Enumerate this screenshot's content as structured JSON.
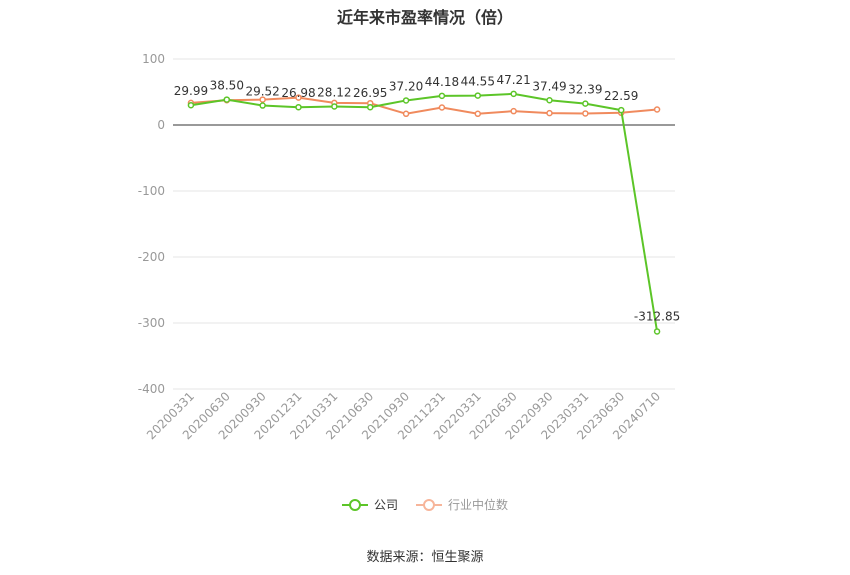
{
  "chart_data": {
    "type": "line",
    "title": "近年来市盈率情况（倍）",
    "categories": [
      "20200331",
      "20200630",
      "20200930",
      "20201231",
      "20210331",
      "20210630",
      "20210930",
      "20211231",
      "20220331",
      "20220630",
      "20220930",
      "20230331",
      "20230630",
      "20240710"
    ],
    "series": [
      {
        "name": "公司",
        "color": "#5cc528",
        "values": [
          29.99,
          38.5,
          29.52,
          26.98,
          28.12,
          26.95,
          37.2,
          44.18,
          44.55,
          47.21,
          37.49,
          32.39,
          22.59,
          -312.85
        ],
        "labels": [
          "29.99",
          "38.50",
          "29.52",
          "26.98",
          "28.12",
          "26.95",
          "37.20",
          "44.18",
          "44.55",
          "47.21",
          "37.49",
          "32.39",
          "22.59",
          "-312.85"
        ]
      },
      {
        "name": "行业中位数",
        "color": "#f08a5d",
        "values": [
          33.5,
          37.5,
          38.5,
          41.5,
          33.5,
          33.0,
          17.0,
          26.5,
          17.0,
          21.0,
          18.0,
          17.5,
          18.5,
          23.5
        ]
      }
    ],
    "ylim": [
      -400,
      100
    ],
    "yticks": [
      100,
      0,
      -100,
      -200,
      -300,
      -400
    ],
    "grid": true,
    "legend_position": "bottom"
  },
  "source_text": "数据来源：恒生聚源"
}
